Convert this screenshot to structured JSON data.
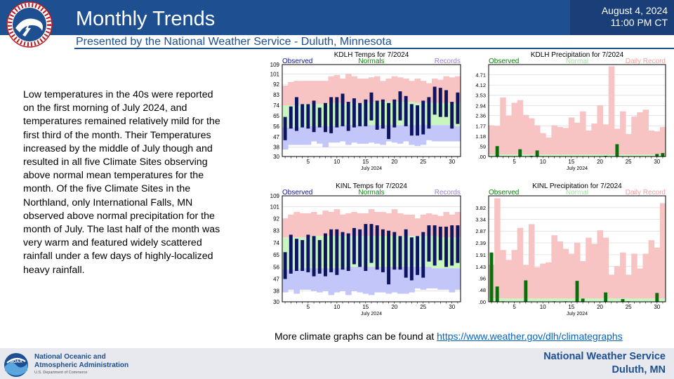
{
  "header": {
    "title": "Monthly Trends",
    "subtitle": "Presented by the National Weather Service - Duluth, Minnesota",
    "date": "August 4, 2024",
    "time": "11:00 PM CT",
    "logo_text": "NATIONAL WEATHER SERVICE"
  },
  "body_text": "Low temperatures in the 40s were reported on the first morning of July 2024, and temperatures remained relatively mild for the first third of the month. Their Temperatures increased by the middle of July though and resulted in all five Climate Sites observing above normal mean temperatures for the month. Of the five Climate Sites in the Northland, only International Falls, MN observed above normal precipitation for the month of July. The last half of the month was very warm and featured widely scattered rainfall under a few days of highly-localized heavy rainfall.",
  "more_link": {
    "text": "More climate graphs can be found at ",
    "url": "https://www.weather.gov/dlh/climategraphs"
  },
  "footer": {
    "noaa_line1": "National Oceanic and",
    "noaa_line2": "Atmospheric Administration",
    "noaa_dept": "U.S. Department of Commerce",
    "nws_line1": "National Weather Service",
    "nws_line2": "Duluth, MN"
  },
  "colors": {
    "brand_blue": "#1d4f91",
    "observed_temp": "#0d1560",
    "observed_precip": "#0a6e0a",
    "normal_band": "#c8f5c0",
    "record_high_band": "#f8c3c3",
    "record_low_band": "#c3c6f8",
    "plot_bg": "#ffffff"
  },
  "chart_data": [
    {
      "type": "bar",
      "title": "KDLH Temps for 7/2024",
      "legend": [
        "Observed",
        "Normals",
        "Records"
      ],
      "xlabel": "July 2024",
      "xticks": [
        5,
        10,
        15,
        20,
        25,
        30
      ],
      "yticks": [
        30,
        38,
        47,
        56,
        65,
        74,
        83,
        92,
        101,
        109
      ],
      "ylim": [
        30,
        109
      ],
      "days": [
        1,
        2,
        3,
        4,
        5,
        6,
        7,
        8,
        9,
        10,
        11,
        12,
        13,
        14,
        15,
        16,
        17,
        18,
        19,
        20,
        21,
        22,
        23,
        24,
        25,
        26,
        27,
        28,
        29,
        30,
        31
      ],
      "observed_high": [
        64,
        73,
        81,
        75,
        75,
        78,
        72,
        76,
        81,
        81,
        84,
        77,
        80,
        76,
        79,
        85,
        78,
        79,
        76,
        79,
        86,
        82,
        75,
        74,
        78,
        81,
        90,
        89,
        87,
        77,
        85
      ],
      "observed_low": [
        44,
        54,
        52,
        55,
        54,
        51,
        55,
        51,
        50,
        55,
        56,
        52,
        55,
        56,
        56,
        61,
        53,
        54,
        45,
        55,
        61,
        56,
        48,
        48,
        49,
        54,
        66,
        64,
        64,
        54,
        58
      ],
      "normal_high": [
        74,
        74,
        74,
        75,
        75,
        75,
        75,
        75,
        76,
        76,
        76,
        76,
        76,
        76,
        76,
        77,
        77,
        77,
        77,
        77,
        77,
        77,
        77,
        76,
        76,
        76,
        76,
        76,
        76,
        76,
        76
      ],
      "normal_low": [
        55,
        55,
        55,
        55,
        56,
        56,
        56,
        56,
        56,
        56,
        57,
        57,
        57,
        57,
        57,
        57,
        57,
        57,
        57,
        57,
        57,
        57,
        57,
        57,
        57,
        57,
        57,
        57,
        57,
        57,
        56
      ],
      "record_high": [
        91,
        94,
        95,
        95,
        95,
        95,
        95,
        95,
        99,
        100,
        97,
        101,
        99,
        97,
        97,
        98,
        99,
        95,
        97,
        99,
        98,
        97,
        95,
        97,
        95,
        93,
        97,
        96,
        99,
        98,
        99
      ],
      "record_low": [
        36,
        40,
        40,
        40,
        40,
        43,
        41,
        38,
        42,
        42,
        43,
        40,
        42,
        41,
        41,
        42,
        41,
        40,
        43,
        42,
        41,
        43,
        40,
        39,
        40,
        44,
        43,
        43,
        43,
        43,
        43
      ]
    },
    {
      "type": "bar",
      "title": "KDLH Precipitation for 7/2024",
      "legend": [
        "Observed",
        "Normal",
        "Daily Record"
      ],
      "xlabel": "July 2024",
      "xticks": [
        5,
        10,
        15,
        20,
        25,
        30
      ],
      "yticks": [
        ".00",
        ".59",
        "1.18",
        "1.77",
        "2.36",
        "2.94",
        "3.53",
        "4.12",
        "4.71"
      ],
      "ylim": [
        0,
        5.3
      ],
      "days": [
        1,
        2,
        3,
        4,
        5,
        6,
        7,
        8,
        9,
        10,
        11,
        12,
        13,
        14,
        15,
        16,
        17,
        18,
        19,
        20,
        21,
        22,
        23,
        24,
        25,
        26,
        27,
        28,
        29,
        30,
        31
      ],
      "observed": [
        0,
        0.6,
        0,
        0,
        0,
        0.42,
        0,
        0.04,
        0.35,
        0,
        0,
        0,
        0,
        0,
        0,
        0,
        0,
        0,
        0,
        0,
        0.04,
        0,
        0.71,
        0.01,
        0,
        0,
        0,
        0,
        0.02,
        0.15,
        0.2
      ],
      "normal": [
        0.12,
        0.12,
        0.12,
        0.12,
        0.12,
        0.12,
        0.12,
        0.12,
        0.12,
        0.12,
        0.12,
        0.12,
        0.12,
        0.12,
        0.12,
        0.12,
        0.12,
        0.12,
        0.12,
        0.12,
        0.12,
        0.12,
        0.12,
        0.12,
        0.12,
        0.12,
        0.12,
        0.12,
        0.12,
        0.12,
        0.12
      ],
      "record": [
        1.8,
        1.75,
        3.4,
        2.35,
        3.1,
        3.25,
        2.4,
        2.2,
        1.8,
        1.35,
        1.1,
        1.8,
        1.7,
        1.65,
        2.25,
        1.95,
        2.6,
        1.5,
        1.9,
        2.95,
        1.85,
        5.2,
        1.6,
        2.6,
        1.3,
        2.3,
        2.55,
        2.7,
        1.5,
        1.45,
        1.7
      ]
    },
    {
      "type": "bar",
      "title": "KINL Temps for 7/2024",
      "legend": [
        "Observed",
        "Normals",
        "Records"
      ],
      "xlabel": "July 2024",
      "xticks": [
        5,
        10,
        15,
        20,
        25,
        30
      ],
      "yticks": [
        30,
        38,
        47,
        56,
        65,
        74,
        83,
        92,
        101,
        109
      ],
      "ylim": [
        30,
        109
      ],
      "days": [
        1,
        2,
        3,
        4,
        5,
        6,
        7,
        8,
        9,
        10,
        11,
        12,
        13,
        14,
        15,
        16,
        17,
        18,
        19,
        20,
        21,
        22,
        23,
        24,
        25,
        26,
        27,
        28,
        29,
        30,
        31
      ],
      "observed_high": [
        67,
        80,
        77,
        76,
        80,
        79,
        76,
        81,
        84,
        84,
        82,
        81,
        85,
        84,
        88,
        88,
        87,
        84,
        83,
        82,
        79,
        84,
        78,
        79,
        82,
        87,
        87,
        86,
        86,
        87,
        87
      ],
      "observed_low": [
        47,
        51,
        53,
        53,
        52,
        49,
        51,
        49,
        52,
        50,
        54,
        53,
        58,
        56,
        53,
        59,
        54,
        52,
        43,
        54,
        54,
        48,
        46,
        50,
        48,
        60,
        57,
        61,
        56,
        57,
        59
      ],
      "normal_high": [
        78,
        78,
        78,
        78,
        78,
        79,
        79,
        79,
        79,
        79,
        79,
        79,
        79,
        79,
        79,
        79,
        79,
        79,
        79,
        79,
        79,
        79,
        79,
        79,
        79,
        79,
        79,
        78,
        78,
        78,
        78
      ],
      "normal_low": [
        54,
        54,
        54,
        55,
        55,
        55,
        55,
        55,
        55,
        55,
        55,
        56,
        56,
        56,
        56,
        56,
        56,
        56,
        56,
        56,
        56,
        56,
        56,
        56,
        56,
        56,
        55,
        55,
        55,
        55,
        55
      ],
      "record_high": [
        92,
        95,
        97,
        96,
        96,
        97,
        95,
        98,
        97,
        99,
        95,
        96,
        97,
        96,
        96,
        99,
        97,
        97,
        96,
        99,
        96,
        95,
        95,
        92,
        95,
        96,
        95,
        94,
        97,
        95,
        97
      ],
      "record_low": [
        37,
        39,
        36,
        39,
        39,
        38,
        37,
        38,
        35,
        37,
        38,
        35,
        38,
        37,
        36,
        35,
        37,
        37,
        36,
        37,
        36,
        36,
        37,
        40,
        39,
        40,
        40,
        39,
        39,
        37,
        39
      ]
    },
    {
      "type": "bar",
      "title": "KINL Precipitation for 7/2024",
      "legend": [
        "Observed",
        "Normal",
        "Daily Record"
      ],
      "xlabel": "July 2024",
      "xticks": [
        5,
        10,
        15,
        20,
        25,
        30
      ],
      "yticks": [
        ".00",
        ".48",
        ".96",
        "1.43",
        "1.91",
        "2.39",
        "2.87",
        "3.34",
        "3.82"
      ],
      "ylim": [
        0,
        4.3
      ],
      "days": [
        1,
        2,
        3,
        4,
        5,
        6,
        7,
        8,
        9,
        10,
        11,
        12,
        13,
        14,
        15,
        16,
        17,
        18,
        19,
        20,
        21,
        22,
        23,
        24,
        25,
        26,
        27,
        28,
        29,
        30,
        31
      ],
      "observed": [
        2.0,
        0.62,
        0.02,
        0,
        0,
        0,
        0.87,
        0,
        0,
        0,
        0,
        0.02,
        0,
        0.02,
        0,
        0.85,
        0.13,
        0,
        0,
        0,
        0.38,
        0,
        0,
        0.11,
        0.02,
        0,
        0,
        0,
        0,
        0.36,
        0
      ],
      "normal": [
        0.14,
        0.14,
        0.14,
        0.14,
        0.14,
        0.14,
        0.14,
        0.14,
        0.14,
        0.14,
        0.14,
        0.14,
        0.14,
        0.14,
        0.14,
        0.14,
        0.14,
        0.14,
        0.14,
        0.14,
        0.14,
        0.14,
        0.14,
        0.14,
        0.14,
        0.14,
        0.14,
        0.14,
        0.14,
        0.14,
        0.14
      ],
      "record": [
        1.5,
        4.2,
        2.1,
        1.7,
        2.1,
        3.0,
        1.5,
        3.15,
        1.4,
        1.55,
        1.6,
        2.7,
        2.45,
        2.15,
        1.95,
        2.4,
        1.65,
        2.6,
        2.35,
        2.9,
        2.6,
        1.1,
        1.45,
        2.0,
        1.1,
        1.95,
        1.35,
        1.95,
        2.5,
        2.2,
        4.0
      ]
    }
  ]
}
